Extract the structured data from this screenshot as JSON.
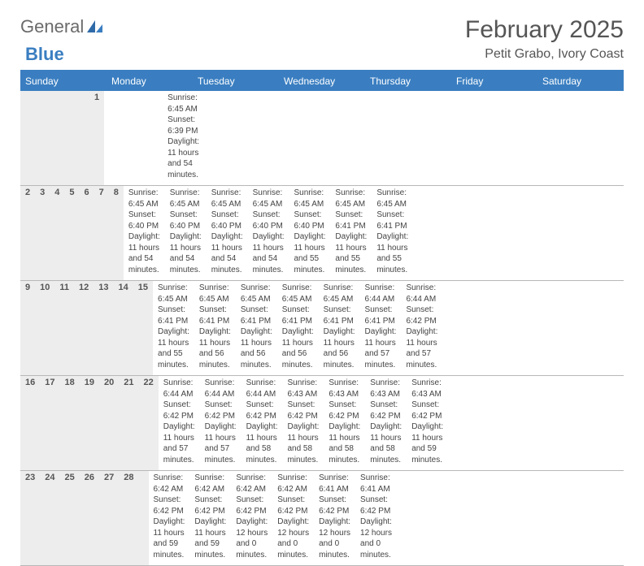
{
  "brand": {
    "word1": "General",
    "word2": "Blue",
    "logo_color": "#3a7ec1"
  },
  "title": "February 2025",
  "location": "Petit Grabo, Ivory Coast",
  "colors": {
    "header_bar": "#3a7ec1",
    "day_strip_bg": "#ededed",
    "border": "#b8b8b8",
    "text": "#444444",
    "title_text": "#555555"
  },
  "weekdays": [
    "Sunday",
    "Monday",
    "Tuesday",
    "Wednesday",
    "Thursday",
    "Friday",
    "Saturday"
  ],
  "weeks": [
    {
      "days": [
        {
          "num": "",
          "lines": [
            "",
            "",
            "",
            ""
          ]
        },
        {
          "num": "",
          "lines": [
            "",
            "",
            "",
            ""
          ]
        },
        {
          "num": "",
          "lines": [
            "",
            "",
            "",
            ""
          ]
        },
        {
          "num": "",
          "lines": [
            "",
            "",
            "",
            ""
          ]
        },
        {
          "num": "",
          "lines": [
            "",
            "",
            "",
            ""
          ]
        },
        {
          "num": "",
          "lines": [
            "",
            "",
            "",
            ""
          ]
        },
        {
          "num": "1",
          "lines": [
            "Sunrise: 6:45 AM",
            "Sunset: 6:39 PM",
            "Daylight: 11 hours",
            "and 54 minutes."
          ]
        }
      ]
    },
    {
      "days": [
        {
          "num": "2",
          "lines": [
            "Sunrise: 6:45 AM",
            "Sunset: 6:40 PM",
            "Daylight: 11 hours",
            "and 54 minutes."
          ]
        },
        {
          "num": "3",
          "lines": [
            "Sunrise: 6:45 AM",
            "Sunset: 6:40 PM",
            "Daylight: 11 hours",
            "and 54 minutes."
          ]
        },
        {
          "num": "4",
          "lines": [
            "Sunrise: 6:45 AM",
            "Sunset: 6:40 PM",
            "Daylight: 11 hours",
            "and 54 minutes."
          ]
        },
        {
          "num": "5",
          "lines": [
            "Sunrise: 6:45 AM",
            "Sunset: 6:40 PM",
            "Daylight: 11 hours",
            "and 54 minutes."
          ]
        },
        {
          "num": "6",
          "lines": [
            "Sunrise: 6:45 AM",
            "Sunset: 6:40 PM",
            "Daylight: 11 hours",
            "and 55 minutes."
          ]
        },
        {
          "num": "7",
          "lines": [
            "Sunrise: 6:45 AM",
            "Sunset: 6:41 PM",
            "Daylight: 11 hours",
            "and 55 minutes."
          ]
        },
        {
          "num": "8",
          "lines": [
            "Sunrise: 6:45 AM",
            "Sunset: 6:41 PM",
            "Daylight: 11 hours",
            "and 55 minutes."
          ]
        }
      ]
    },
    {
      "days": [
        {
          "num": "9",
          "lines": [
            "Sunrise: 6:45 AM",
            "Sunset: 6:41 PM",
            "Daylight: 11 hours",
            "and 55 minutes."
          ]
        },
        {
          "num": "10",
          "lines": [
            "Sunrise: 6:45 AM",
            "Sunset: 6:41 PM",
            "Daylight: 11 hours",
            "and 56 minutes."
          ]
        },
        {
          "num": "11",
          "lines": [
            "Sunrise: 6:45 AM",
            "Sunset: 6:41 PM",
            "Daylight: 11 hours",
            "and 56 minutes."
          ]
        },
        {
          "num": "12",
          "lines": [
            "Sunrise: 6:45 AM",
            "Sunset: 6:41 PM",
            "Daylight: 11 hours",
            "and 56 minutes."
          ]
        },
        {
          "num": "13",
          "lines": [
            "Sunrise: 6:45 AM",
            "Sunset: 6:41 PM",
            "Daylight: 11 hours",
            "and 56 minutes."
          ]
        },
        {
          "num": "14",
          "lines": [
            "Sunrise: 6:44 AM",
            "Sunset: 6:41 PM",
            "Daylight: 11 hours",
            "and 57 minutes."
          ]
        },
        {
          "num": "15",
          "lines": [
            "Sunrise: 6:44 AM",
            "Sunset: 6:42 PM",
            "Daylight: 11 hours",
            "and 57 minutes."
          ]
        }
      ]
    },
    {
      "days": [
        {
          "num": "16",
          "lines": [
            "Sunrise: 6:44 AM",
            "Sunset: 6:42 PM",
            "Daylight: 11 hours",
            "and 57 minutes."
          ]
        },
        {
          "num": "17",
          "lines": [
            "Sunrise: 6:44 AM",
            "Sunset: 6:42 PM",
            "Daylight: 11 hours",
            "and 57 minutes."
          ]
        },
        {
          "num": "18",
          "lines": [
            "Sunrise: 6:44 AM",
            "Sunset: 6:42 PM",
            "Daylight: 11 hours",
            "and 58 minutes."
          ]
        },
        {
          "num": "19",
          "lines": [
            "Sunrise: 6:43 AM",
            "Sunset: 6:42 PM",
            "Daylight: 11 hours",
            "and 58 minutes."
          ]
        },
        {
          "num": "20",
          "lines": [
            "Sunrise: 6:43 AM",
            "Sunset: 6:42 PM",
            "Daylight: 11 hours",
            "and 58 minutes."
          ]
        },
        {
          "num": "21",
          "lines": [
            "Sunrise: 6:43 AM",
            "Sunset: 6:42 PM",
            "Daylight: 11 hours",
            "and 58 minutes."
          ]
        },
        {
          "num": "22",
          "lines": [
            "Sunrise: 6:43 AM",
            "Sunset: 6:42 PM",
            "Daylight: 11 hours",
            "and 59 minutes."
          ]
        }
      ]
    },
    {
      "days": [
        {
          "num": "23",
          "lines": [
            "Sunrise: 6:42 AM",
            "Sunset: 6:42 PM",
            "Daylight: 11 hours",
            "and 59 minutes."
          ]
        },
        {
          "num": "24",
          "lines": [
            "Sunrise: 6:42 AM",
            "Sunset: 6:42 PM",
            "Daylight: 11 hours",
            "and 59 minutes."
          ]
        },
        {
          "num": "25",
          "lines": [
            "Sunrise: 6:42 AM",
            "Sunset: 6:42 PM",
            "Daylight: 12 hours",
            "and 0 minutes."
          ]
        },
        {
          "num": "26",
          "lines": [
            "Sunrise: 6:42 AM",
            "Sunset: 6:42 PM",
            "Daylight: 12 hours",
            "and 0 minutes."
          ]
        },
        {
          "num": "27",
          "lines": [
            "Sunrise: 6:41 AM",
            "Sunset: 6:42 PM",
            "Daylight: 12 hours",
            "and 0 minutes."
          ]
        },
        {
          "num": "28",
          "lines": [
            "Sunrise: 6:41 AM",
            "Sunset: 6:42 PM",
            "Daylight: 12 hours",
            "and 0 minutes."
          ]
        },
        {
          "num": "",
          "lines": [
            "",
            "",
            "",
            ""
          ]
        }
      ]
    }
  ]
}
